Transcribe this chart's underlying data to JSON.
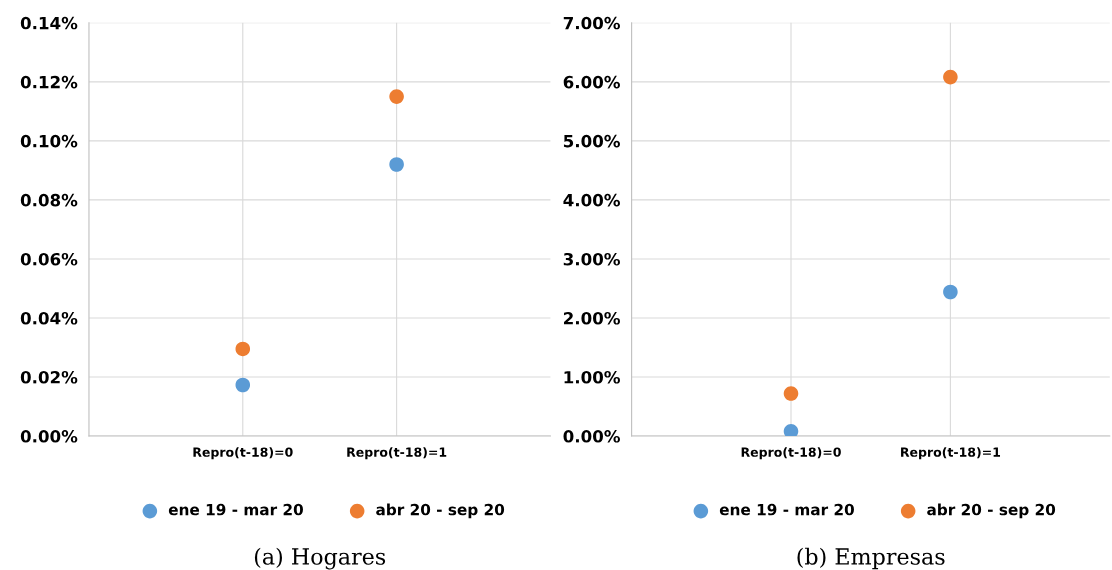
{
  "chart_data": [
    {
      "type": "scatter",
      "categories": [
        "Repro(t-18)=0",
        "Repro(t-18)=1"
      ],
      "series": [
        {
          "name": "ene 19 - mar 20",
          "color": "#5b9bd5",
          "values": [
            0.0173,
            0.092
          ]
        },
        {
          "name": "abr 20 - sep 20",
          "color": "#ed7d31",
          "values": [
            0.0295,
            0.115
          ]
        }
      ],
      "ylim": [
        0,
        0.14
      ],
      "yticks": [
        {
          "value": 0,
          "label": "0.00%"
        },
        {
          "value": 0.02,
          "label": "0.02%"
        },
        {
          "value": 0.04,
          "label": "0.04%"
        },
        {
          "value": 0.06,
          "label": "0.06%"
        },
        {
          "value": 0.08,
          "label": "0.08%"
        },
        {
          "value": 0.1,
          "label": "0.10%"
        },
        {
          "value": 0.12,
          "label": "0.12%"
        },
        {
          "value": 0.14,
          "label": "0.14%"
        }
      ],
      "grid": true,
      "legend": "bottom",
      "marker": "circle",
      "annotations": [
        "(a) Hogares"
      ]
    },
    {
      "type": "scatter",
      "categories": [
        "Repro(t-18)=0",
        "Repro(t-18)=1"
      ],
      "series": [
        {
          "name": "ene 19 - mar 20",
          "color": "#5b9bd5",
          "values": [
            0.08,
            2.44
          ]
        },
        {
          "name": "abr 20 - sep 20",
          "color": "#ed7d31",
          "values": [
            0.72,
            6.08
          ]
        }
      ],
      "ylim": [
        0,
        7
      ],
      "yticks": [
        {
          "value": 0,
          "label": "0.00%"
        },
        {
          "value": 1,
          "label": "1.00%"
        },
        {
          "value": 2,
          "label": "2.00%"
        },
        {
          "value": 3,
          "label": "3.00%"
        },
        {
          "value": 4,
          "label": "4.00%"
        },
        {
          "value": 5,
          "label": "5.00%"
        },
        {
          "value": 6,
          "label": "6.00%"
        },
        {
          "value": 7,
          "label": "7.00%"
        }
      ],
      "grid": true,
      "legend": "bottom",
      "marker": "circle",
      "annotations": [
        "(b) Empresas"
      ]
    }
  ]
}
